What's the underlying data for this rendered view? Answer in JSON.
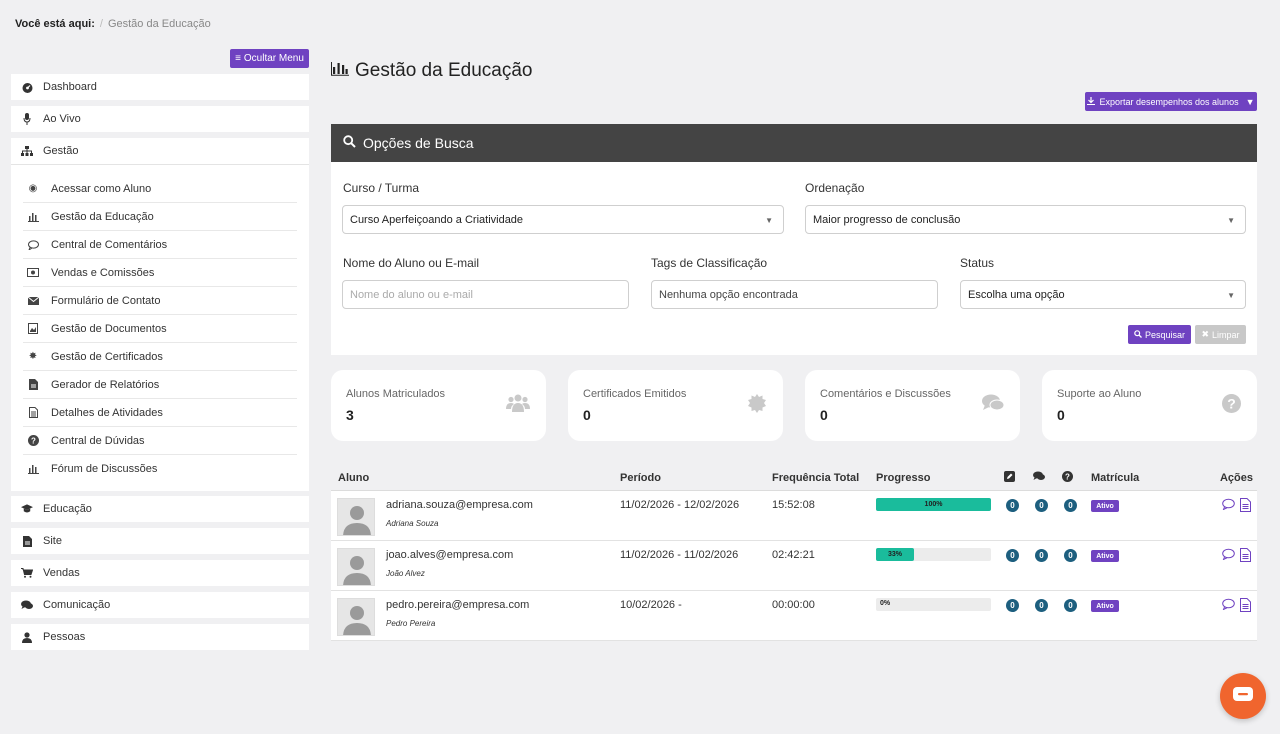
{
  "breadcrumb": {
    "label": "Você está aqui:",
    "current": "Gestão da Educação"
  },
  "sidebar": {
    "hide_label": "Ocultar Menu",
    "top_items": [
      {
        "label": "Dashboard",
        "icon": "dashboard-icon"
      },
      {
        "label": "Ao Vivo",
        "icon": "microphone-icon"
      },
      {
        "label": "Gestão",
        "icon": "sitemap-icon"
      }
    ],
    "sub_items": [
      {
        "label": "Acessar como Aluno",
        "icon": "eye-icon"
      },
      {
        "label": "Gestão da Educação",
        "icon": "bar-chart-icon"
      },
      {
        "label": "Central de Comentários",
        "icon": "comment-icon"
      },
      {
        "label": "Vendas e Comissões",
        "icon": "money-icon"
      },
      {
        "label": "Formulário de Contato",
        "icon": "envelope-icon"
      },
      {
        "label": "Gestão de Documentos",
        "icon": "image-file-icon"
      },
      {
        "label": "Gestão de Certificados",
        "icon": "certificate-icon"
      },
      {
        "label": "Gerador de Relatórios",
        "icon": "report-file-icon"
      },
      {
        "label": "Detalhes de Atividades",
        "icon": "text-file-icon"
      },
      {
        "label": "Central de Dúvidas",
        "icon": "question-icon"
      },
      {
        "label": "Fórum de Discussões",
        "icon": "bar-chart-icon"
      }
    ],
    "bottom_items": [
      {
        "label": "Educação",
        "icon": "graduation-cap-icon"
      },
      {
        "label": "Site",
        "icon": "file-icon"
      },
      {
        "label": "Vendas",
        "icon": "cart-icon"
      },
      {
        "label": "Comunicação",
        "icon": "comments-icon"
      },
      {
        "label": "Pessoas",
        "icon": "user-icon"
      }
    ]
  },
  "main": {
    "title": "Gestão da Educação",
    "export_label": "Exportar desempenhos dos alunos"
  },
  "search": {
    "header": "Opções de Busca",
    "course_label": "Curso / Turma",
    "course_value": "Curso Aperfeiçoando a Criatividade",
    "order_label": "Ordenação",
    "order_value": "Maior progresso de conclusão",
    "name_label": "Nome do Aluno ou E-mail",
    "name_placeholder": "Nome do aluno ou e-mail",
    "tags_label": "Tags de Classificação",
    "tags_value": "Nenhuma opção encontrada",
    "status_label": "Status",
    "status_value": "Escolha uma opção",
    "search_button": "Pesquisar",
    "clear_button": "Limpar"
  },
  "stats": [
    {
      "label": "Alunos Matriculados",
      "value": "3",
      "icon": "users-icon"
    },
    {
      "label": "Certificados Emitidos",
      "value": "0",
      "icon": "certificate-icon"
    },
    {
      "label": "Comentários e Discussões",
      "value": "0",
      "icon": "comments-icon"
    },
    {
      "label": "Suporte ao Aluno",
      "value": "0",
      "icon": "question-icon"
    }
  ],
  "table": {
    "headers": {
      "student": "Aluno",
      "period": "Período",
      "frequency": "Frequência Total",
      "progress": "Progresso",
      "enrollment": "Matrícula",
      "actions": "Ações"
    },
    "rows": [
      {
        "email": "adriana.souza@empresa.com",
        "name": "Adriana Souza",
        "period": "11/02/2026 - 12/02/2026",
        "frequency": "15:52:08",
        "progress": 100,
        "progress_label": "100%",
        "edits": "0",
        "comments": "0",
        "questions": "0",
        "status": "Ativo"
      },
      {
        "email": "joao.alves@empresa.com",
        "name": "João Alvez",
        "period": "11/02/2026 - 11/02/2026",
        "frequency": "02:42:21",
        "progress": 33,
        "progress_label": "33%",
        "edits": "0",
        "comments": "0",
        "questions": "0",
        "status": "Ativo"
      },
      {
        "email": "pedro.pereira@empresa.com",
        "name": "Pedro Pereira",
        "period": "10/02/2026 -",
        "frequency": "00:00:00",
        "progress": 0,
        "progress_label": "0%",
        "edits": "0",
        "comments": "0",
        "questions": "0",
        "status": "Ativo"
      }
    ]
  },
  "colors": {
    "accent": "#6f42c1",
    "progress": "#1abc9c",
    "header_dark": "#444444",
    "circle": "#1d5f7f",
    "chat": "#f0652e"
  }
}
